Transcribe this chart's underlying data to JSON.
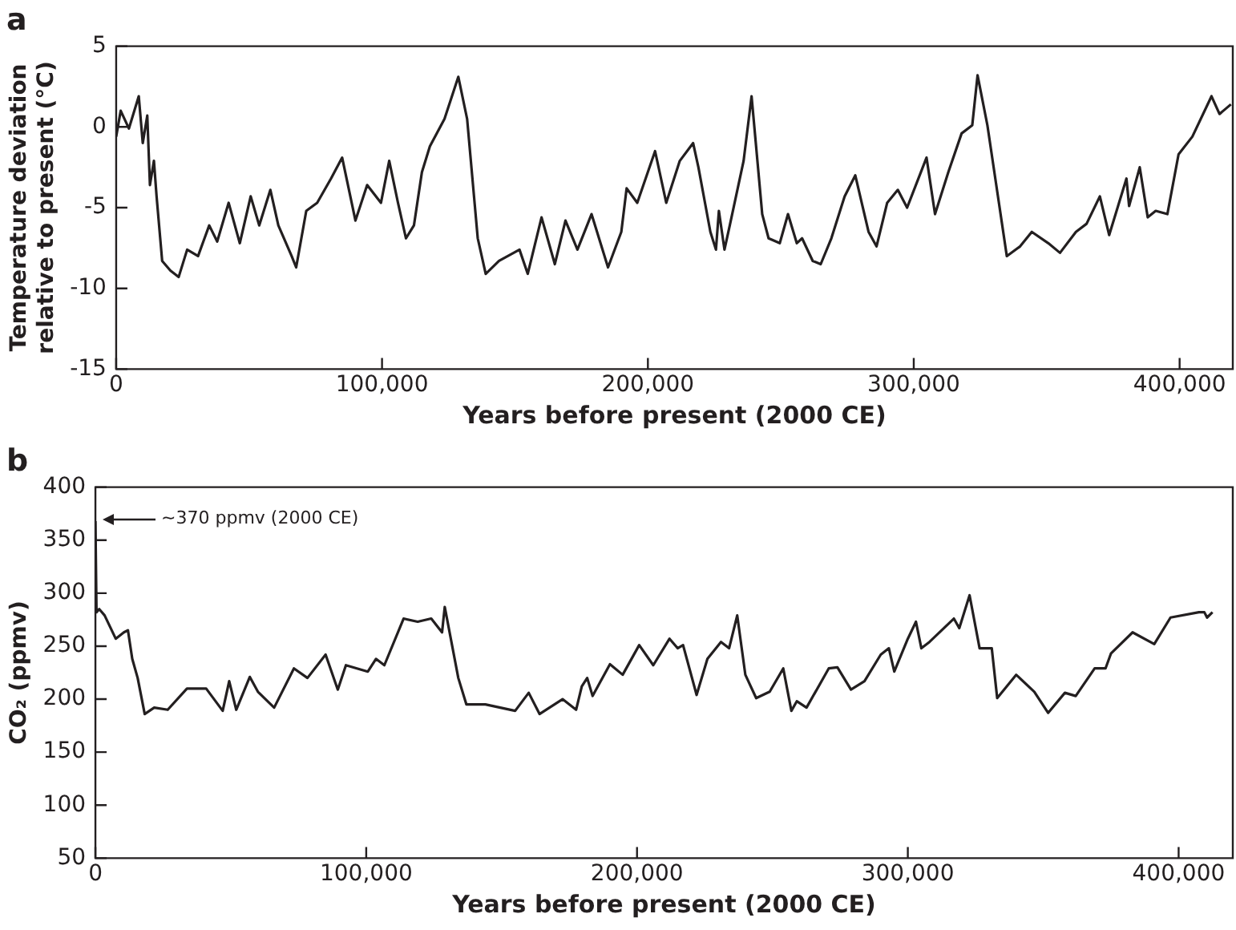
{
  "chart_data": [
    {
      "type": "line",
      "title": "a",
      "xlabel": "Years before present (2000 CE)",
      "ylabel": "Temperature deviation relative to present (°C)",
      "xlim": [
        0,
        420000
      ],
      "xticks": [
        0,
        {
          "value": 100000,
          "label": "100,000"
        },
        {
          "value": 200000,
          "label": "200,000"
        },
        {
          "value": 300000,
          "label": "300,000"
        },
        {
          "value": 400000,
          "label": "400,000"
        }
      ],
      "ylim": [
        -15,
        5
      ],
      "yticks": [
        -15,
        -10,
        -5,
        0,
        5
      ],
      "marker": "none",
      "series": [
        {
          "color": "#231f20",
          "x": [
            0,
            1700,
            4800,
            8500,
            10000,
            11700,
            12700,
            14200,
            15200,
            17300,
            20400,
            23500,
            26700,
            30800,
            35000,
            38000,
            42300,
            46500,
            50600,
            53800,
            58000,
            61000,
            66000,
            67700,
            71500,
            75600,
            80800,
            85000,
            90000,
            94400,
            99600,
            102700,
            106000,
            109000,
            112000,
            115000,
            118000,
            123500,
            128700,
            132000,
            136000,
            139000,
            144000,
            151700,
            154800,
            160000,
            165000,
            169000,
            173500,
            178800,
            185000,
            190000,
            192000,
            196000,
            202700,
            206900,
            212000,
            217000,
            219000,
            223500,
            225600,
            226700,
            228800,
            230800,
            236000,
            239000,
            243000,
            245400,
            249600,
            252700,
            256000,
            258000,
            262000,
            265000,
            269000,
            274000,
            278000,
            283000,
            286000,
            290000,
            294000,
            297500,
            304800,
            308000,
            313000,
            318000,
            322000,
            324000,
            327700,
            335000,
            340000,
            344400,
            350600,
            355000,
            361000,
            365000,
            370000,
            373500,
            380000,
            381000,
            385000,
            388000,
            391000,
            395400,
            399600,
            404800,
            412000,
            415000,
            419300
          ],
          "values": [
            -0.6,
            1.0,
            -0.1,
            1.9,
            -1,
            0.7,
            -3.6,
            -2.1,
            -4.3,
            -8.3,
            -8.9,
            -9.3,
            -7.6,
            -8,
            -6.1,
            -7.1,
            -4.7,
            -7.2,
            -4.3,
            -6.1,
            -3.9,
            -6.1,
            -8,
            -8.7,
            -5.2,
            -4.7,
            -3.2,
            -1.9,
            -5.8,
            -3.6,
            -4.7,
            -2.1,
            -4.7,
            -6.9,
            -6.1,
            -2.8,
            -1.2,
            0.5,
            3.1,
            0.5,
            -6.9,
            -9.1,
            -8.3,
            -7.6,
            -9.1,
            -5.6,
            -8.5,
            -5.8,
            -7.6,
            -5.4,
            -8.7,
            -6.5,
            -3.8,
            -4.7,
            -1.5,
            -4.7,
            -2.1,
            -1,
            -2.5,
            -6.5,
            -7.6,
            -5.2,
            -7.6,
            -6.1,
            -2.1,
            1.9,
            -5.4,
            -6.9,
            -7.2,
            -5.4,
            -7.2,
            -6.9,
            -8.3,
            -8.5,
            -6.9,
            -4.3,
            -3,
            -6.5,
            -7.4,
            -4.7,
            -3.9,
            -5,
            -1.9,
            -5.4,
            -2.8,
            -0.4,
            0.1,
            3.2,
            0.1,
            -8,
            -7.4,
            -6.5,
            -7.2,
            -7.8,
            -6.5,
            -6,
            -4.3,
            -6.7,
            -3.2,
            -4.9,
            -2.5,
            -5.6,
            -5.2,
            -5.4,
            -1.7,
            -0.6,
            1.9,
            0.8,
            1.4
          ]
        }
      ]
    },
    {
      "type": "line",
      "title": "b",
      "xlabel": "Years before present (2000 CE)",
      "ylabel": "CO₂ (ppmv)",
      "xlim": [
        0,
        420000
      ],
      "xticks": [
        0,
        {
          "value": 100000,
          "label": "100,000"
        },
        {
          "value": 200000,
          "label": "200,000"
        },
        {
          "value": 300000,
          "label": "300,000"
        },
        {
          "value": 400000,
          "label": "400,000"
        }
      ],
      "ylim": [
        50,
        400
      ],
      "yticks": [
        50,
        100,
        150,
        200,
        250,
        300,
        350,
        400
      ],
      "marker": "none",
      "annotations": [
        "~370 ppmv (2000 CE)"
      ],
      "series": [
        {
          "color": "#231f20",
          "x": [
            0,
            400,
            1400,
            3400,
            7500,
            10500,
            12000,
            13600,
            15600,
            18200,
            21700,
            26700,
            33800,
            40900,
            47000,
            49400,
            52000,
            57000,
            60000,
            66000,
            73300,
            78300,
            85000,
            89500,
            92500,
            100600,
            103600,
            106700,
            113800,
            119000,
            124000,
            128000,
            129000,
            134000,
            137000,
            144000,
            155000,
            160000,
            164000,
            172500,
            177500,
            179600,
            181600,
            183600,
            190000,
            194700,
            200800,
            206000,
            212000,
            215000,
            217000,
            222000,
            226000,
            231000,
            234000,
            237000,
            240000,
            244000,
            249000,
            254000,
            257000,
            259000,
            262600,
            270800,
            274000,
            279000,
            284000,
            290000,
            293000,
            295000,
            300000,
            303000,
            305000,
            308000,
            317000,
            319000,
            322800,
            326500,
            331000,
            333000,
            340000,
            346700,
            351800,
            358000,
            362000,
            369000,
            373000,
            375000,
            383000,
            391000,
            397000,
            407500,
            409500,
            410500,
            412500
          ],
          "values": [
            368,
            282,
            285,
            279,
            257,
            263,
            265,
            238,
            220,
            186,
            192,
            190,
            210,
            210,
            189,
            217,
            190,
            221,
            207,
            192,
            229,
            220,
            242,
            209,
            232,
            226,
            238,
            232,
            276,
            273,
            276,
            263,
            287,
            220,
            195,
            195,
            189,
            206,
            186,
            200,
            190,
            212,
            220,
            203,
            233,
            223,
            251,
            232,
            257,
            248,
            251,
            204,
            238,
            254,
            248,
            279,
            223,
            201,
            207,
            229,
            189,
            198,
            192,
            229,
            230,
            209,
            217,
            242,
            248,
            226,
            257,
            273,
            248,
            254,
            276,
            267,
            298,
            248,
            248,
            201,
            223,
            207,
            187,
            206,
            203,
            229,
            229,
            243,
            263,
            252,
            277,
            282,
            282,
            277,
            282
          ]
        }
      ]
    }
  ]
}
